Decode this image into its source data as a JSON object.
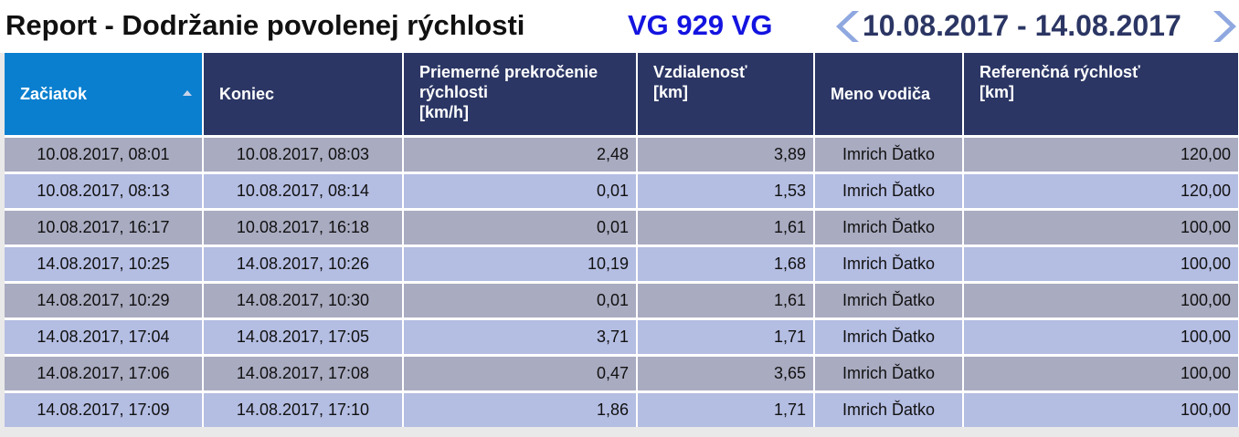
{
  "header": {
    "title": "Report - Dodržanie povolenej rýchlosti",
    "vehicle": "VG 929 VG",
    "range": "10.08.2017 - 14.08.2017"
  },
  "table": {
    "columns": [
      [
        "Začiatok"
      ],
      [
        "Koniec"
      ],
      [
        "Priemerné prekročenie",
        "rýchlosti",
        "[km/h]"
      ],
      [
        "Vzdialenosť",
        "[km]"
      ],
      [
        "Meno vodiča"
      ],
      [
        "Referenčná rýchlosť",
        "[km]"
      ]
    ],
    "rows": [
      [
        "10.08.2017, 08:01",
        "10.08.2017, 08:03",
        "2,48",
        "3,89",
        "Imrich Ďatko",
        "120,00"
      ],
      [
        "10.08.2017, 08:13",
        "10.08.2017, 08:14",
        "0,01",
        "1,53",
        "Imrich Ďatko",
        "120,00"
      ],
      [
        "10.08.2017, 16:17",
        "10.08.2017, 16:18",
        "0,01",
        "1,61",
        "Imrich Ďatko",
        "100,00"
      ],
      [
        "14.08.2017, 10:25",
        "14.08.2017, 10:26",
        "10,19",
        "1,68",
        "Imrich Ďatko",
        "100,00"
      ],
      [
        "14.08.2017, 10:29",
        "14.08.2017, 10:30",
        "0,01",
        "1,61",
        "Imrich Ďatko",
        "100,00"
      ],
      [
        "14.08.2017, 17:04",
        "14.08.2017, 17:05",
        "3,71",
        "1,71",
        "Imrich Ďatko",
        "100,00"
      ],
      [
        "14.08.2017, 17:06",
        "14.08.2017, 17:08",
        "0,47",
        "3,65",
        "Imrich Ďatko",
        "100,00"
      ],
      [
        "14.08.2017, 17:09",
        "14.08.2017, 17:10",
        "1,86",
        "1,71",
        "Imrich Ďatko",
        "100,00"
      ]
    ]
  }
}
